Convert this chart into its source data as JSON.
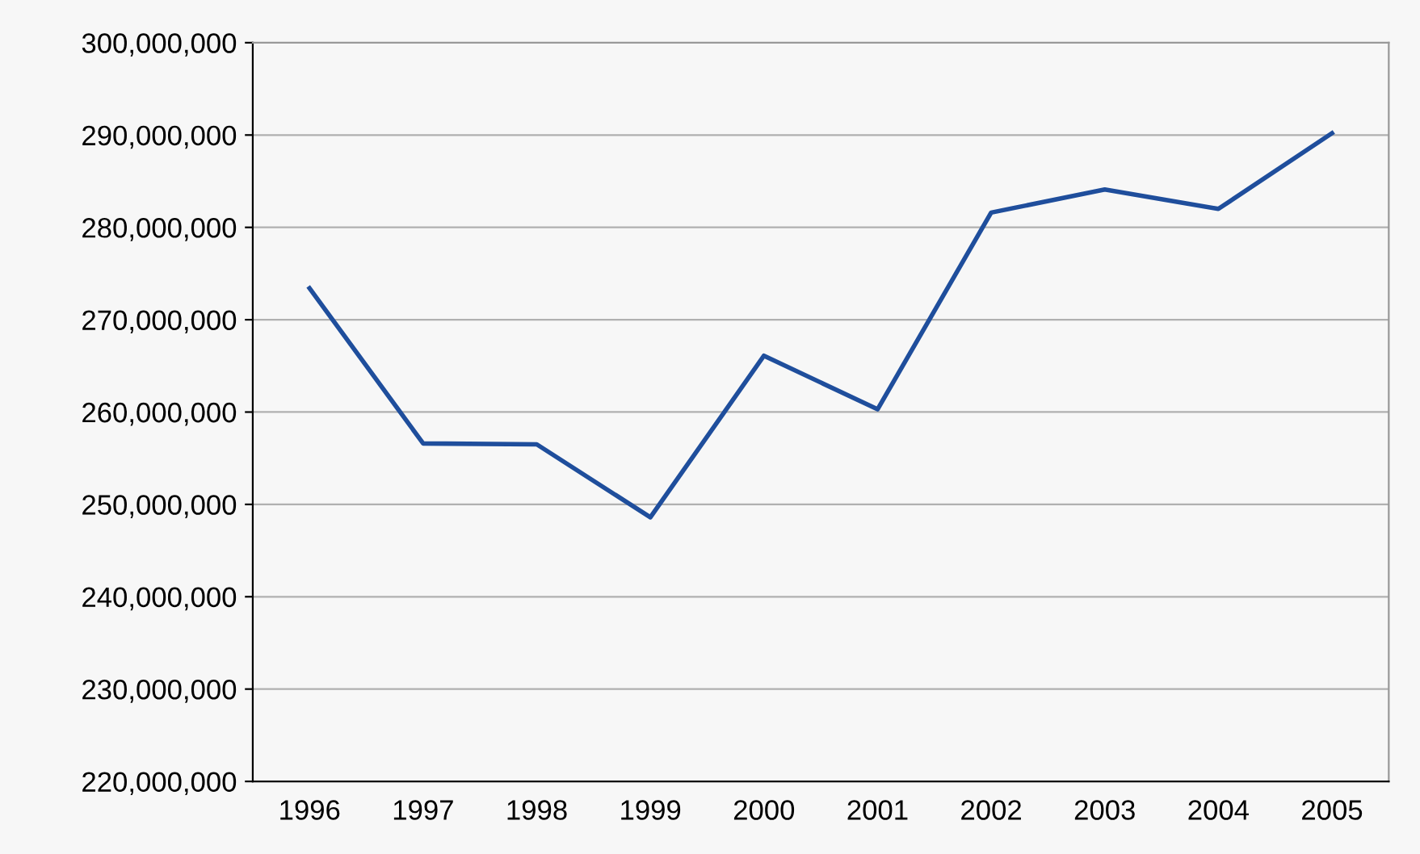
{
  "chart_data": {
    "type": "line",
    "categories": [
      "1996",
      "1997",
      "1998",
      "1999",
      "2000",
      "2001",
      "2002",
      "2003",
      "2004",
      "2005"
    ],
    "series": [
      {
        "color": "#1f4e9c",
        "values": [
          273400000,
          256600000,
          256500000,
          248600000,
          266100000,
          260300000,
          281600000,
          284100000,
          282000000,
          290200000
        ]
      }
    ],
    "ylim": [
      220000000,
      300000000
    ],
    "yticks": [
      {
        "value": 220000000,
        "label": "220,000,000"
      },
      {
        "value": 230000000,
        "label": "230,000,000"
      },
      {
        "value": 240000000,
        "label": "240,000,000"
      },
      {
        "value": 250000000,
        "label": "250,000,000"
      },
      {
        "value": 260000000,
        "label": "260,000,000"
      },
      {
        "value": 270000000,
        "label": "270,000,000"
      },
      {
        "value": 280000000,
        "label": "280,000,000"
      },
      {
        "value": 290000000,
        "label": "290,000,000"
      },
      {
        "value": 300000000,
        "label": "300,000,000"
      }
    ],
    "grid": "y",
    "marker": "none",
    "line_style": "solid"
  }
}
